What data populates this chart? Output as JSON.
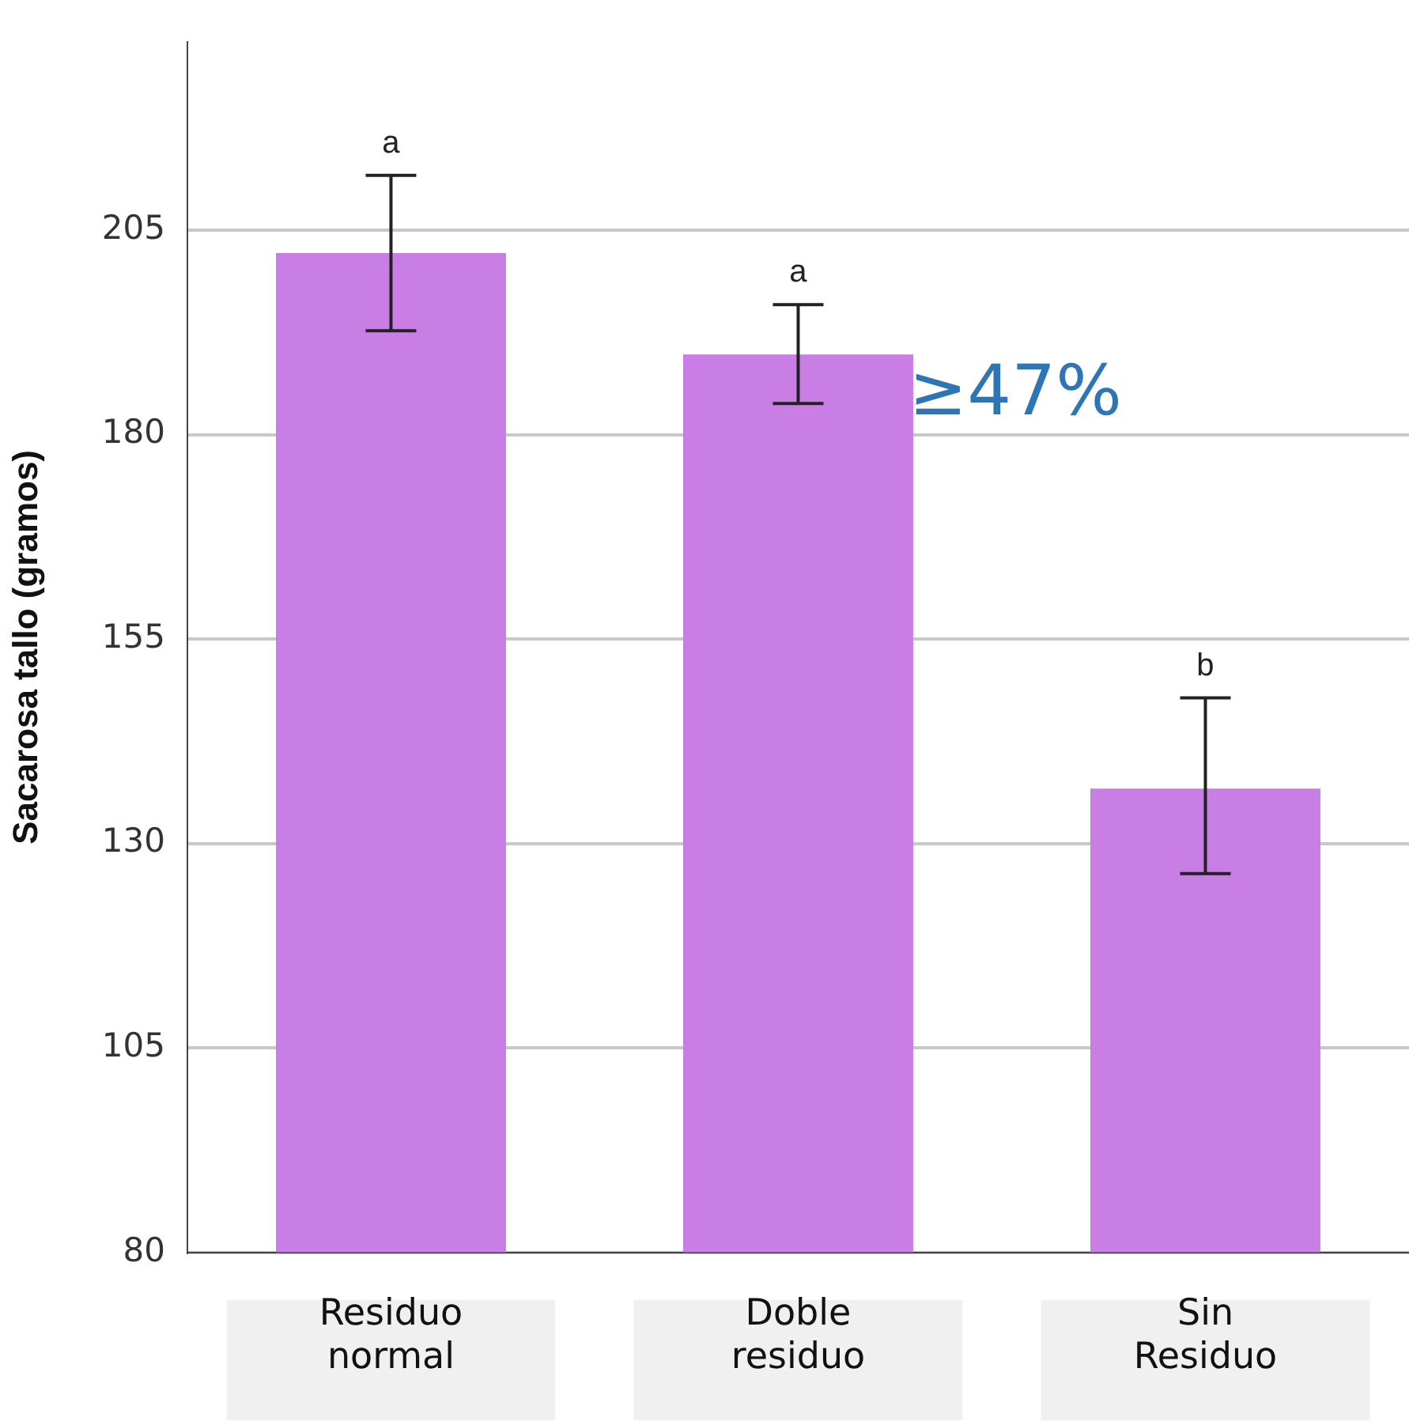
{
  "chart_data": {
    "type": "bar",
    "ylabel": "Sacarosa tallo (gramos)",
    "categories": [
      "Residuo normal",
      "Doble residuo",
      "Sin Residuo"
    ],
    "values": [
      202.2,
      189.8,
      136.7
    ],
    "errors": [
      [
        192.7,
        211.7
      ],
      [
        183.8,
        195.9
      ],
      [
        126.3,
        147.8
      ]
    ],
    "color": "#c97ee5",
    "ylim": [
      80,
      228
    ],
    "yticks": [
      80,
      105,
      130,
      155,
      180,
      205
    ],
    "grid": "y",
    "annotations": [
      "a",
      "a",
      "b",
      {
        "text": "≥47%",
        "x": "Doble residuo",
        "y": 184.7
      }
    ]
  }
}
